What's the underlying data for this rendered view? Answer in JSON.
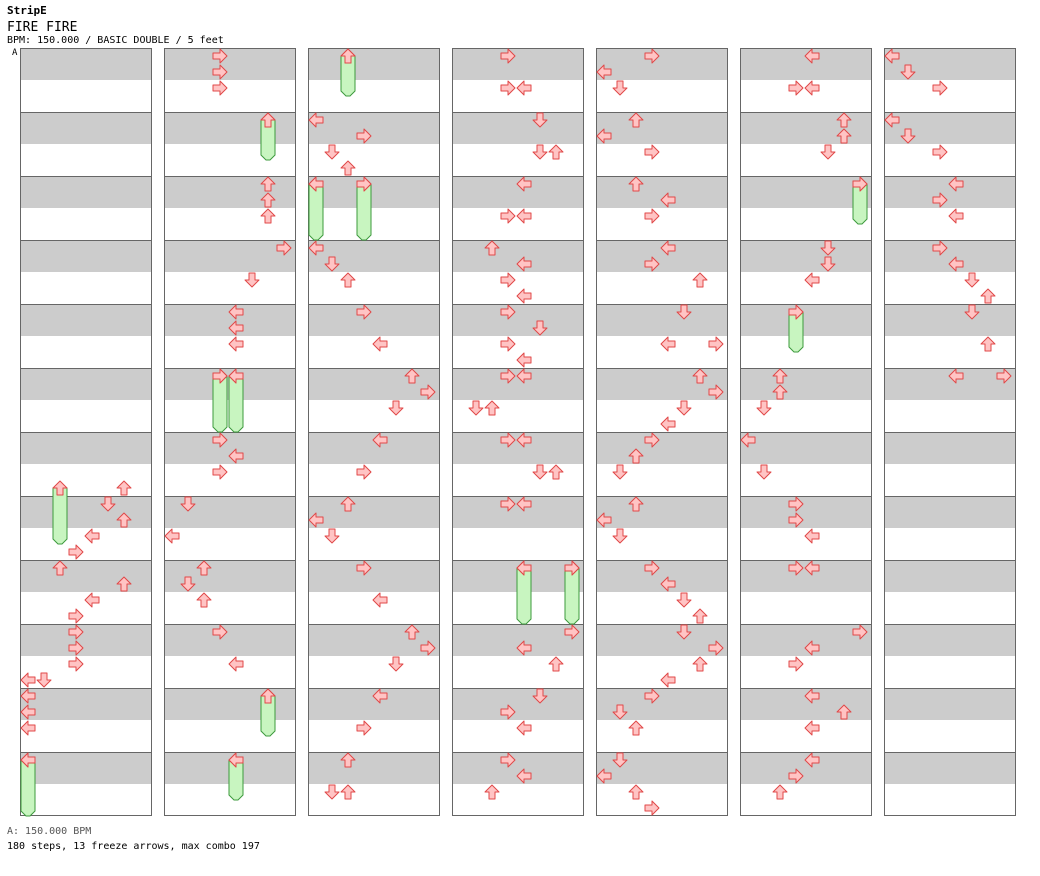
{
  "header": {
    "brand": "StripE",
    "title": "FIRE FIRE",
    "info": "BPM: 150.000 / BASIC DOUBLE / 5 feet",
    "bpm_marker_label": "A"
  },
  "footer": {
    "bpm_line": "A: 150.000 BPM",
    "stats": "180 steps, 13 freeze arrows, max combo 197"
  },
  "colors": {
    "stripe_dark": "#cccccc",
    "stripe_light": "#ffffff",
    "arrow_fill": "#ffc4c4",
    "arrow_stroke": "#e04848",
    "freeze_fill": "#c8f5c0",
    "freeze_stroke": "#3d9a3d",
    "bpm_marker": "#3366cc"
  },
  "chart": {
    "lanes": 8,
    "lane_dirs": [
      "left",
      "down",
      "up",
      "right",
      "left",
      "down",
      "up",
      "right"
    ],
    "columns_count": 7,
    "rows_per_column": 48,
    "rows_per_measure": 4,
    "notes": [
      [
        0,
        27,
        6,
        1
      ],
      [
        0,
        27,
        2,
        4
      ],
      [
        0,
        28,
        5,
        1
      ],
      [
        0,
        29,
        6,
        1
      ],
      [
        0,
        30,
        4,
        1
      ],
      [
        0,
        31,
        3,
        1
      ],
      [
        0,
        32,
        2,
        1
      ],
      [
        0,
        33,
        6,
        1
      ],
      [
        0,
        34,
        4,
        1
      ],
      [
        0,
        35,
        3,
        1
      ],
      [
        0,
        36,
        3,
        1
      ],
      [
        0,
        37,
        3,
        1
      ],
      [
        0,
        38,
        3,
        1
      ],
      [
        0,
        39,
        0,
        1
      ],
      [
        0,
        39,
        1,
        1
      ],
      [
        0,
        40,
        0,
        1
      ],
      [
        0,
        41,
        0,
        1
      ],
      [
        0,
        42,
        0,
        1
      ],
      [
        0,
        44,
        0,
        1
      ],
      [
        0,
        44,
        0,
        4
      ],
      [
        1,
        0,
        3,
        1
      ],
      [
        1,
        1,
        3,
        1
      ],
      [
        1,
        2,
        3,
        1
      ],
      [
        1,
        4,
        6,
        1
      ],
      [
        1,
        4,
        6,
        3
      ],
      [
        1,
        8,
        6,
        1
      ],
      [
        1,
        9,
        6,
        1
      ],
      [
        1,
        10,
        6,
        1
      ],
      [
        1,
        12,
        7,
        1
      ],
      [
        1,
        14,
        5,
        1
      ],
      [
        1,
        16,
        4,
        1
      ],
      [
        1,
        17,
        4,
        1
      ],
      [
        1,
        18,
        4,
        1
      ],
      [
        1,
        20,
        3,
        1
      ],
      [
        1,
        20,
        3,
        4
      ],
      [
        1,
        20,
        4,
        1
      ],
      [
        1,
        20,
        4,
        4
      ],
      [
        1,
        24,
        3,
        1
      ],
      [
        1,
        25,
        4,
        1
      ],
      [
        1,
        26,
        3,
        1
      ],
      [
        1,
        28,
        1,
        1
      ],
      [
        1,
        30,
        0,
        1
      ],
      [
        1,
        32,
        2,
        1
      ],
      [
        1,
        33,
        1,
        1
      ],
      [
        1,
        34,
        2,
        1
      ],
      [
        1,
        36,
        3,
        1
      ],
      [
        1,
        38,
        4,
        1
      ],
      [
        1,
        40,
        6,
        1
      ],
      [
        1,
        40,
        6,
        3
      ],
      [
        1,
        44,
        4,
        1
      ],
      [
        1,
        44,
        4,
        3
      ],
      [
        2,
        0,
        2,
        1
      ],
      [
        2,
        0,
        2,
        3
      ],
      [
        2,
        4,
        0,
        1
      ],
      [
        2,
        5,
        3,
        1
      ],
      [
        2,
        6,
        1,
        1
      ],
      [
        2,
        7,
        2,
        1
      ],
      [
        2,
        8,
        0,
        1
      ],
      [
        2,
        8,
        0,
        4
      ],
      [
        2,
        8,
        3,
        1
      ],
      [
        2,
        8,
        3,
        4
      ],
      [
        2,
        12,
        0,
        1
      ],
      [
        2,
        13,
        1,
        1
      ],
      [
        2,
        14,
        2,
        1
      ],
      [
        2,
        16,
        3,
        1
      ],
      [
        2,
        18,
        4,
        1
      ],
      [
        2,
        20,
        6,
        1
      ],
      [
        2,
        21,
        7,
        1
      ],
      [
        2,
        22,
        5,
        1
      ],
      [
        2,
        24,
        4,
        1
      ],
      [
        2,
        26,
        3,
        1
      ],
      [
        2,
        28,
        2,
        1
      ],
      [
        2,
        29,
        0,
        1
      ],
      [
        2,
        30,
        1,
        1
      ],
      [
        2,
        32,
        3,
        1
      ],
      [
        2,
        34,
        4,
        1
      ],
      [
        2,
        36,
        6,
        1
      ],
      [
        2,
        37,
        7,
        1
      ],
      [
        2,
        38,
        5,
        1
      ],
      [
        2,
        40,
        4,
        1
      ],
      [
        2,
        42,
        3,
        1
      ],
      [
        2,
        44,
        2,
        1
      ],
      [
        2,
        46,
        1,
        1
      ],
      [
        2,
        46,
        2,
        1
      ],
      [
        3,
        0,
        3,
        1
      ],
      [
        3,
        2,
        3,
        1
      ],
      [
        3,
        2,
        4,
        1
      ],
      [
        3,
        4,
        5,
        1
      ],
      [
        3,
        6,
        5,
        1
      ],
      [
        3,
        6,
        6,
        1
      ],
      [
        3,
        8,
        4,
        1
      ],
      [
        3,
        10,
        3,
        1
      ],
      [
        3,
        10,
        4,
        1
      ],
      [
        3,
        12,
        2,
        1
      ],
      [
        3,
        13,
        4,
        1
      ],
      [
        3,
        14,
        3,
        1
      ],
      [
        3,
        15,
        4,
        1
      ],
      [
        3,
        16,
        3,
        1
      ],
      [
        3,
        17,
        5,
        1
      ],
      [
        3,
        18,
        3,
        1
      ],
      [
        3,
        19,
        4,
        1
      ],
      [
        3,
        20,
        3,
        1
      ],
      [
        3,
        20,
        4,
        1
      ],
      [
        3,
        22,
        1,
        1
      ],
      [
        3,
        22,
        2,
        1
      ],
      [
        3,
        24,
        3,
        1
      ],
      [
        3,
        24,
        4,
        1
      ],
      [
        3,
        26,
        5,
        1
      ],
      [
        3,
        26,
        6,
        1
      ],
      [
        3,
        28,
        3,
        1
      ],
      [
        3,
        28,
        4,
        1
      ],
      [
        3,
        32,
        4,
        1
      ],
      [
        3,
        32,
        4,
        4
      ],
      [
        3,
        32,
        7,
        1
      ],
      [
        3,
        32,
        7,
        4
      ],
      [
        3,
        36,
        7,
        1
      ],
      [
        3,
        37,
        4,
        1
      ],
      [
        3,
        38,
        6,
        1
      ],
      [
        3,
        40,
        5,
        1
      ],
      [
        3,
        41,
        3,
        1
      ],
      [
        3,
        42,
        4,
        1
      ],
      [
        3,
        44,
        3,
        1
      ],
      [
        3,
        45,
        4,
        1
      ],
      [
        3,
        46,
        2,
        1
      ],
      [
        4,
        0,
        3,
        1
      ],
      [
        4,
        1,
        0,
        1
      ],
      [
        4,
        2,
        1,
        1
      ],
      [
        4,
        4,
        2,
        1
      ],
      [
        4,
        5,
        0,
        1
      ],
      [
        4,
        6,
        3,
        1
      ],
      [
        4,
        8,
        2,
        1
      ],
      [
        4,
        9,
        4,
        1
      ],
      [
        4,
        10,
        3,
        1
      ],
      [
        4,
        12,
        4,
        1
      ],
      [
        4,
        13,
        3,
        1
      ],
      [
        4,
        14,
        6,
        1
      ],
      [
        4,
        16,
        5,
        1
      ],
      [
        4,
        18,
        4,
        1
      ],
      [
        4,
        18,
        7,
        1
      ],
      [
        4,
        20,
        6,
        1
      ],
      [
        4,
        21,
        7,
        1
      ],
      [
        4,
        22,
        5,
        1
      ],
      [
        4,
        23,
        4,
        1
      ],
      [
        4,
        24,
        3,
        1
      ],
      [
        4,
        25,
        2,
        1
      ],
      [
        4,
        26,
        1,
        1
      ],
      [
        4,
        28,
        2,
        1
      ],
      [
        4,
        29,
        0,
        1
      ],
      [
        4,
        30,
        1,
        1
      ],
      [
        4,
        32,
        3,
        1
      ],
      [
        4,
        33,
        4,
        1
      ],
      [
        4,
        34,
        5,
        1
      ],
      [
        4,
        35,
        6,
        1
      ],
      [
        4,
        36,
        5,
        1
      ],
      [
        4,
        37,
        7,
        1
      ],
      [
        4,
        38,
        6,
        1
      ],
      [
        4,
        39,
        4,
        1
      ],
      [
        4,
        40,
        3,
        1
      ],
      [
        4,
        41,
        1,
        1
      ],
      [
        4,
        42,
        2,
        1
      ],
      [
        4,
        44,
        1,
        1
      ],
      [
        4,
        45,
        0,
        1
      ],
      [
        4,
        46,
        2,
        1
      ],
      [
        4,
        47,
        3,
        1
      ],
      [
        5,
        0,
        4,
        1
      ],
      [
        5,
        2,
        3,
        1
      ],
      [
        5,
        2,
        4,
        1
      ],
      [
        5,
        4,
        6,
        1
      ],
      [
        5,
        5,
        6,
        1
      ],
      [
        5,
        6,
        5,
        1
      ],
      [
        5,
        8,
        7,
        1
      ],
      [
        5,
        8,
        7,
        3
      ],
      [
        5,
        12,
        5,
        1
      ],
      [
        5,
        13,
        5,
        1
      ],
      [
        5,
        14,
        4,
        1
      ],
      [
        5,
        16,
        3,
        1
      ],
      [
        5,
        16,
        3,
        3
      ],
      [
        5,
        20,
        2,
        1
      ],
      [
        5,
        21,
        2,
        1
      ],
      [
        5,
        22,
        1,
        1
      ],
      [
        5,
        24,
        0,
        1
      ],
      [
        5,
        26,
        1,
        1
      ],
      [
        5,
        28,
        3,
        1
      ],
      [
        5,
        29,
        3,
        1
      ],
      [
        5,
        30,
        4,
        1
      ],
      [
        5,
        32,
        3,
        1
      ],
      [
        5,
        32,
        4,
        1
      ],
      [
        5,
        36,
        7,
        1
      ],
      [
        5,
        37,
        4,
        1
      ],
      [
        5,
        38,
        3,
        1
      ],
      [
        5,
        40,
        4,
        1
      ],
      [
        5,
        41,
        6,
        1
      ],
      [
        5,
        42,
        4,
        1
      ],
      [
        5,
        44,
        4,
        1
      ],
      [
        5,
        45,
        3,
        1
      ],
      [
        5,
        46,
        2,
        1
      ],
      [
        6,
        0,
        0,
        1
      ],
      [
        6,
        1,
        1,
        1
      ],
      [
        6,
        2,
        3,
        1
      ],
      [
        6,
        4,
        0,
        1
      ],
      [
        6,
        5,
        1,
        1
      ],
      [
        6,
        6,
        3,
        1
      ],
      [
        6,
        8,
        4,
        1
      ],
      [
        6,
        9,
        3,
        1
      ],
      [
        6,
        10,
        4,
        1
      ],
      [
        6,
        12,
        3,
        1
      ],
      [
        6,
        13,
        4,
        1
      ],
      [
        6,
        14,
        5,
        1
      ],
      [
        6,
        15,
        6,
        1
      ],
      [
        6,
        16,
        5,
        1
      ],
      [
        6,
        18,
        6,
        1
      ],
      [
        6,
        20,
        4,
        1
      ],
      [
        6,
        20,
        7,
        1
      ]
    ]
  }
}
